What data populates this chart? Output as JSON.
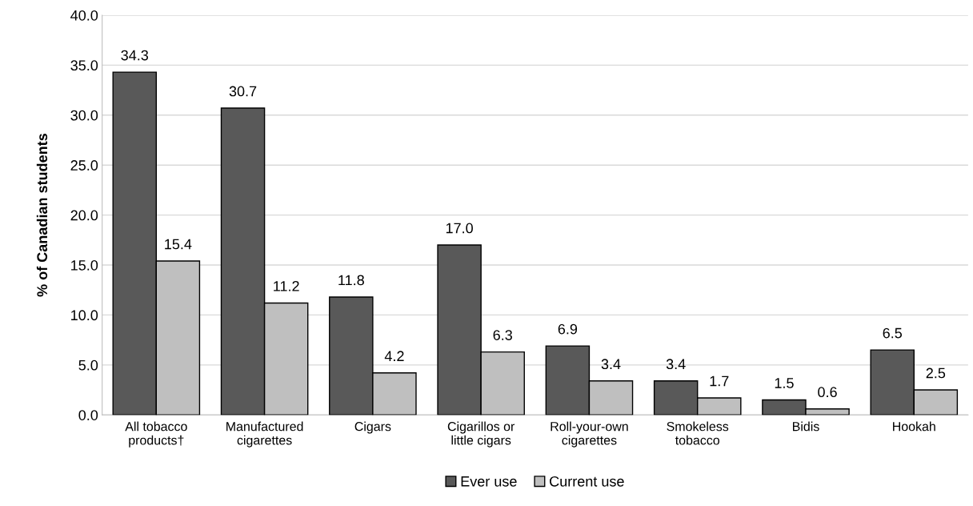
{
  "chart_data": {
    "type": "bar",
    "ylabel": "% of Canadian students",
    "categories": [
      "All tobacco\nproducts†",
      "Manufactured\ncigarettes",
      "Cigars",
      "Cigarillos or\nlittle cigars",
      "Roll-your-own\ncigarettes",
      "Smokeless\ntobacco",
      "Bidis",
      "Hookah"
    ],
    "series": [
      {
        "name": "Ever use",
        "color": "#595959",
        "values": [
          34.3,
          30.7,
          11.8,
          17.0,
          6.9,
          3.4,
          1.5,
          6.5
        ],
        "value_labels": [
          "34.3",
          "30.7",
          "11.8",
          "17.0",
          "6.9",
          "3.4",
          "1.5",
          "6.5"
        ]
      },
      {
        "name": "Current use",
        "color": "#bfbfbf",
        "values": [
          15.4,
          11.2,
          4.2,
          6.3,
          3.4,
          1.7,
          0.6,
          2.5
        ],
        "value_labels": [
          "15.4",
          "11.2",
          "4.2",
          "6.3",
          "3.4",
          "1.7",
          "0.6",
          "2.5"
        ]
      }
    ],
    "ylim": [
      0,
      40
    ],
    "yticks": [
      {
        "value": 0,
        "label": "0.0"
      },
      {
        "value": 5,
        "label": "5.0"
      },
      {
        "value": 10,
        "label": "10.0"
      },
      {
        "value": 15,
        "label": "15.0"
      },
      {
        "value": 20,
        "label": "20.0"
      },
      {
        "value": 25,
        "label": "25.0"
      },
      {
        "value": 30,
        "label": "30.0"
      },
      {
        "value": 35,
        "label": "35.0"
      },
      {
        "value": 40,
        "label": "40.0"
      }
    ],
    "grid": "y",
    "legend": "bottom"
  }
}
